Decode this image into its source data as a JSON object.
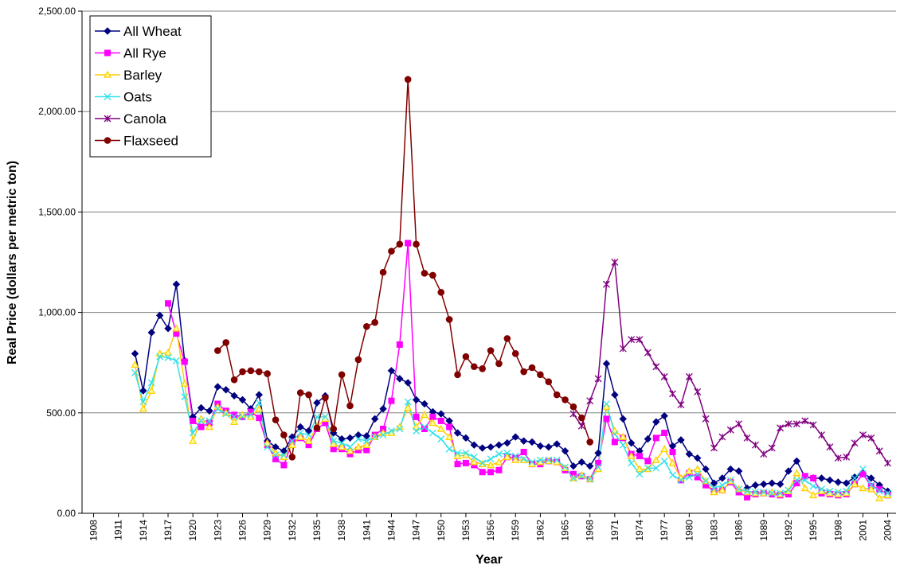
{
  "chart_data": {
    "type": "line",
    "y_label": "Real Price (dollars per metric ton)",
    "x_label": "Year",
    "xlim": [
      1906.6,
      2005
    ],
    "ylim": [
      0,
      2500
    ],
    "xticks": [
      1908,
      1911,
      1914,
      1917,
      1920,
      1923,
      1926,
      1929,
      1932,
      1935,
      1938,
      1941,
      1944,
      1947,
      1950,
      1953,
      1956,
      1959,
      1962,
      1965,
      1968,
      1971,
      1974,
      1977,
      1980,
      1983,
      1986,
      1989,
      1992,
      1995,
      1998,
      2001,
      2004
    ],
    "yticks": [
      {
        "value": 0,
        "label": "0.00"
      },
      {
        "value": 500,
        "label": "500.00"
      },
      {
        "value": 1000,
        "label": "1,000.00"
      },
      {
        "value": 1500,
        "label": "1,500.00"
      },
      {
        "value": 2000,
        "label": "2,000.00"
      },
      {
        "value": 2500,
        "label": "2,500.00"
      }
    ],
    "grid": true,
    "legend": "upper left",
    "x": [
      1913,
      1914,
      1915,
      1916,
      1917,
      1918,
      1919,
      1920,
      1921,
      1922,
      1923,
      1924,
      1925,
      1926,
      1927,
      1928,
      1929,
      1930,
      1931,
      1932,
      1933,
      1934,
      1935,
      1936,
      1937,
      1938,
      1939,
      1940,
      1941,
      1942,
      1943,
      1944,
      1945,
      1946,
      1947,
      1948,
      1949,
      1950,
      1951,
      1952,
      1953,
      1954,
      1955,
      1956,
      1957,
      1958,
      1959,
      1960,
      1961,
      1962,
      1963,
      1964,
      1965,
      1966,
      1967,
      1968,
      1969,
      1970,
      1971,
      1972,
      1973,
      1974,
      1975,
      1976,
      1977,
      1978,
      1979,
      1980,
      1981,
      1982,
      1983,
      1984,
      1985,
      1986,
      1987,
      1988,
      1989,
      1990,
      1991,
      1992,
      1993,
      1994,
      1995,
      1996,
      1997,
      1998,
      1999,
      2000,
      2001,
      2002,
      2003,
      2004
    ],
    "series": [
      {
        "name": "All Wheat",
        "color": "#000080",
        "marker": "diamond",
        "values": [
          795,
          610,
          900,
          985,
          920,
          1140,
          760,
          480,
          525,
          510,
          630,
          615,
          585,
          565,
          520,
          590,
          360,
          330,
          310,
          380,
          430,
          410,
          550,
          585,
          400,
          370,
          375,
          390,
          385,
          470,
          520,
          710,
          670,
          650,
          565,
          545,
          505,
          495,
          460,
          400,
          375,
          340,
          325,
          330,
          340,
          350,
          380,
          360,
          355,
          335,
          330,
          345,
          310,
          235,
          255,
          235,
          300,
          745,
          590,
          470,
          350,
          310,
          370,
          455,
          485,
          335,
          365,
          295,
          275,
          220,
          150,
          175,
          220,
          210,
          125,
          140,
          145,
          150,
          145,
          210,
          260,
          180,
          175,
          175,
          165,
          155,
          150,
          180,
          200,
          175,
          140,
          110
        ]
      },
      {
        "name": "All Rye",
        "color": "#ff00ff",
        "marker": "square",
        "values": [
          null,
          null,
          null,
          null,
          1045,
          895,
          755,
          460,
          430,
          450,
          545,
          510,
          490,
          480,
          505,
          475,
          340,
          270,
          240,
          355,
          375,
          340,
          420,
          450,
          320,
          320,
          295,
          315,
          315,
          390,
          420,
          560,
          840,
          1345,
          480,
          420,
          480,
          460,
          430,
          245,
          250,
          240,
          205,
          205,
          215,
          280,
          275,
          305,
          245,
          245,
          260,
          255,
          215,
          195,
          185,
          170,
          250,
          470,
          355,
          375,
          295,
          285,
          260,
          375,
          400,
          305,
          165,
          200,
          180,
          140,
          110,
          115,
          155,
          105,
          80,
          95,
          100,
          95,
          90,
          95,
          150,
          185,
          175,
          100,
          95,
          90,
          95,
          145,
          195,
          135,
          120,
          90
        ]
      },
      {
        "name": "Barley",
        "color": "#ffcc00",
        "marker": "triangle",
        "values": [
          740,
          520,
          610,
          795,
          800,
          920,
          645,
          360,
          470,
          430,
          530,
          500,
          455,
          490,
          480,
          520,
          350,
          300,
          280,
          340,
          380,
          360,
          430,
          470,
          345,
          330,
          310,
          330,
          340,
          380,
          400,
          400,
          430,
          525,
          430,
          490,
          450,
          420,
          380,
          285,
          290,
          255,
          245,
          240,
          255,
          280,
          265,
          265,
          245,
          255,
          260,
          255,
          225,
          175,
          190,
          170,
          220,
          530,
          410,
          380,
          285,
          220,
          220,
          265,
          320,
          250,
          175,
          210,
          220,
          160,
          105,
          115,
          160,
          120,
          105,
          100,
          100,
          105,
          95,
          110,
          200,
          125,
          90,
          110,
          100,
          95,
          100,
          145,
          125,
          120,
          75,
          90
        ]
      },
      {
        "name": "Oats",
        "color": "#33e0e8",
        "marker": "x",
        "values": [
          700,
          555,
          650,
          780,
          775,
          760,
          580,
          400,
          460,
          460,
          520,
          495,
          480,
          480,
          490,
          550,
          330,
          290,
          290,
          360,
          400,
          390,
          480,
          480,
          360,
          350,
          330,
          370,
          360,
          380,
          390,
          410,
          420,
          555,
          410,
          430,
          400,
          370,
          320,
          300,
          300,
          280,
          250,
          270,
          295,
          300,
          285,
          270,
          255,
          265,
          265,
          265,
          230,
          175,
          185,
          170,
          230,
          545,
          395,
          340,
          250,
          195,
          225,
          225,
          260,
          190,
          165,
          180,
          195,
          160,
          125,
          140,
          165,
          120,
          110,
          105,
          105,
          100,
          100,
          115,
          165,
          165,
          135,
          120,
          110,
          105,
          110,
          175,
          220,
          140,
          110,
          100
        ]
      },
      {
        "name": "Canola",
        "color": "#800080",
        "marker": "star",
        "values": [
          null,
          null,
          null,
          null,
          null,
          null,
          null,
          null,
          null,
          null,
          null,
          null,
          null,
          null,
          null,
          null,
          null,
          null,
          null,
          null,
          null,
          null,
          null,
          null,
          null,
          null,
          null,
          null,
          null,
          null,
          null,
          null,
          null,
          null,
          null,
          null,
          null,
          null,
          null,
          null,
          null,
          null,
          null,
          null,
          null,
          null,
          null,
          null,
          null,
          null,
          null,
          null,
          null,
          495,
          435,
          560,
          670,
          1140,
          1250,
          820,
          865,
          865,
          800,
          730,
          680,
          595,
          540,
          680,
          605,
          470,
          325,
          380,
          415,
          445,
          375,
          340,
          295,
          325,
          425,
          445,
          445,
          460,
          440,
          390,
          330,
          275,
          280,
          350,
          390,
          375,
          310,
          250
        ]
      },
      {
        "name": "Flaxseed",
        "color": "#800000",
        "marker": "circle",
        "values": [
          null,
          null,
          null,
          null,
          null,
          null,
          null,
          null,
          null,
          null,
          810,
          850,
          665,
          705,
          710,
          705,
          695,
          465,
          390,
          280,
          600,
          590,
          425,
          575,
          420,
          690,
          535,
          765,
          930,
          950,
          1200,
          1305,
          1340,
          2160,
          1340,
          1195,
          1185,
          1100,
          965,
          690,
          780,
          730,
          720,
          810,
          745,
          870,
          795,
          705,
          725,
          690,
          655,
          590,
          565,
          530,
          475,
          355,
          null,
          null,
          null,
          null,
          null,
          null,
          null,
          null,
          null,
          null,
          null,
          null,
          null,
          null,
          null,
          null,
          null,
          null,
          null,
          null,
          null,
          null,
          null,
          null,
          null,
          null,
          null,
          null,
          null,
          null,
          null,
          null,
          null,
          null,
          null,
          null
        ]
      }
    ]
  }
}
